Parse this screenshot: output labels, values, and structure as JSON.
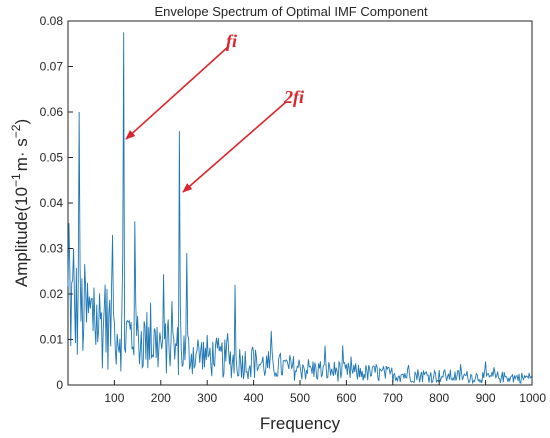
{
  "chart_data": {
    "type": "line",
    "title": "Envelope Spectrum of Optimal IMF Component",
    "xlabel": "Frequency",
    "ylabel": "Amplitude(10",
    "ylabel_exp1": "−1",
    "ylabel_mid": "m· s",
    "ylabel_exp2": "−2",
    "ylabel_end": ")",
    "xlim": [
      0,
      1000
    ],
    "ylim": [
      0,
      0.08
    ],
    "xticks": [
      100,
      200,
      300,
      400,
      500,
      600,
      700,
      800,
      900,
      1000
    ],
    "xtick_labels": [
      "100",
      "200",
      "300",
      "400",
      "500",
      "600",
      "700",
      "800",
      "900",
      "1000"
    ],
    "yticks": [
      0,
      0.01,
      0.02,
      0.03,
      0.04,
      0.05,
      0.06,
      0.07,
      0.08
    ],
    "ytick_labels": [
      "0",
      "0.01",
      "0.02",
      "0.03",
      "0.04",
      "0.05",
      "0.06",
      "0.07",
      "0.08"
    ],
    "series_color": "#1f77b4",
    "annotation_color": "#d9262c",
    "grid": false,
    "peaks": [
      {
        "x": 4,
        "y": 0.025
      },
      {
        "x": 12,
        "y": 0.03
      },
      {
        "x": 24,
        "y": 0.06
      },
      {
        "x": 96,
        "y": 0.033
      },
      {
        "x": 120,
        "y": 0.0775
      },
      {
        "x": 144,
        "y": 0.036
      },
      {
        "x": 240,
        "y": 0.0558
      },
      {
        "x": 256,
        "y": 0.029
      },
      {
        "x": 360,
        "y": 0.022
      }
    ],
    "annotations": [
      {
        "label": "fi",
        "target_x": 120,
        "target_y": 0.0535
      },
      {
        "label": "2fi",
        "target_x": 240,
        "target_y": 0.0415
      }
    ]
  }
}
